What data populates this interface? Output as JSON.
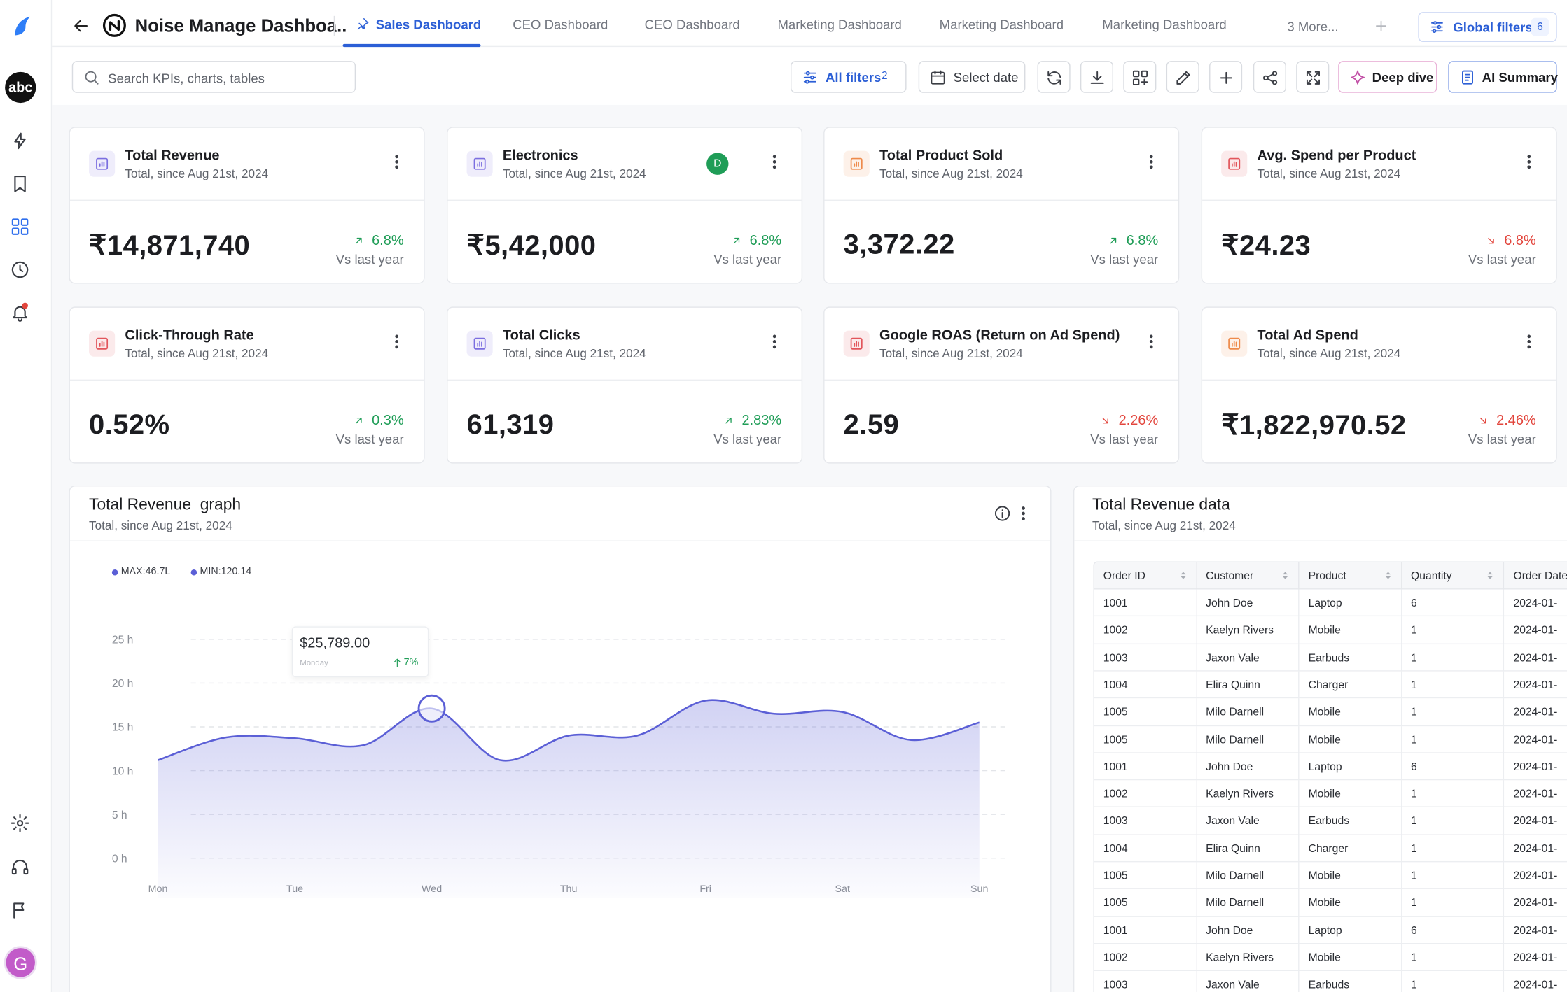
{
  "sidebar": {
    "workspace": "abc",
    "avatar": "G"
  },
  "header": {
    "title": "Noise Manage Dashboa..",
    "tabs": [
      "Sales Dashboard",
      "CEO Dashboard",
      "CEO Dashboard",
      "Marketing Dashboard",
      "Marketing Dashboard",
      "Marketing Dashboard"
    ],
    "more": "3 More...",
    "global_filters": "Global filters",
    "global_filters_count": "6"
  },
  "toolbar": {
    "search_placeholder": "Search KPIs, charts, tables",
    "all_filters": "All filters",
    "all_filters_count": "2",
    "select_date": "Select date",
    "deep_dive": "Deep dive",
    "ai_summary": "AI Summary"
  },
  "kpis": [
    {
      "title": "Total Revenue",
      "subtitle": "Total, since Aug 21st, 2024",
      "value": "₹14,871,740",
      "change": "6.8%",
      "compare": "Vs last year",
      "trend": "up",
      "icon_color": "#7b6ee0"
    },
    {
      "title": "Electronics",
      "subtitle": "Total, since Aug 21st, 2024",
      "value": "₹5,42,000",
      "change": "6.8%",
      "compare": "Vs last year",
      "trend": "up",
      "icon_color": "#7b6ee0",
      "badge": "D"
    },
    {
      "title": "Total Product Sold",
      "subtitle": "Total, since Aug 21st, 2024",
      "value": "3,372.22",
      "change": "6.8%",
      "compare": "Vs last year",
      "trend": "up",
      "icon_color": "#ee8a4a"
    },
    {
      "title": "Avg. Spend per Product",
      "subtitle": "Total, since Aug 21st, 2024",
      "value": "₹24.23",
      "change": "6.8%",
      "compare": "Vs last year",
      "trend": "down",
      "icon_color": "#e2555b"
    },
    {
      "title": "Click-Through Rate",
      "subtitle": "Total, since Aug 21st, 2024",
      "value": "0.52%",
      "change": "0.3%",
      "compare": "Vs last year",
      "trend": "up",
      "icon_color": "#e2555b"
    },
    {
      "title": "Total Clicks",
      "subtitle": "Total, since Aug 21st, 2024",
      "value": "61,319",
      "change": "2.83%",
      "compare": "Vs last year",
      "trend": "up",
      "icon_color": "#7b6ee0"
    },
    {
      "title": "Google ROAS (Return on Ad Spend)",
      "subtitle": "Total, since Aug 21st, 2024",
      "value": "2.59",
      "change": "2.26%",
      "compare": "Vs last year",
      "trend": "down",
      "icon_color": "#e2555b"
    },
    {
      "title": "Total Ad Spend",
      "subtitle": "Total, since Aug 21st, 2024",
      "value": "₹1,822,970.52",
      "change": "2.46%",
      "compare": "Vs last year",
      "trend": "down",
      "icon_color": "#ee8a4a"
    }
  ],
  "revenue_graph": {
    "title": "Total Revenue  graph",
    "subtitle": "Total, since Aug 21st, 2024",
    "legend": [
      "MAX:46.7L",
      "MIN:120.14"
    ],
    "tooltip": {
      "value": "$25,789.00",
      "day": "Monday",
      "change": "7%"
    }
  },
  "chart_data": {
    "type": "line",
    "categories": [
      "Mon",
      null,
      "Tue",
      null,
      "Wed",
      null,
      "Thu",
      null,
      "Fri",
      null,
      "Sat",
      null,
      "Sun"
    ],
    "series": [
      {
        "color": "#5b5fd6",
        "values": [
          11.2,
          13.8,
          13.7,
          12.9,
          17.1,
          11.2,
          14.0,
          14.0,
          18.0,
          16.5,
          16.7,
          13.5,
          15.5
        ]
      }
    ],
    "ylim": [
      0,
      25
    ],
    "yticks": [
      {
        "value": 0,
        "label": "0 h"
      },
      {
        "value": 5,
        "label": "5 h"
      },
      {
        "value": 10,
        "label": "10 h"
      },
      {
        "value": 15,
        "label": "15 h"
      },
      {
        "value": 20,
        "label": "20 h"
      },
      {
        "value": 25,
        "label": "25 h"
      }
    ],
    "grid": true
  },
  "revenue_table": {
    "title": "Total Revenue data",
    "subtitle": "Total, since Aug 21st, 2024",
    "columns": [
      "Order ID",
      "Customer",
      "Product",
      "Quantity",
      "Order Date"
    ],
    "rows": [
      [
        "1001",
        "John Doe",
        "Laptop",
        "6",
        "2024-01-"
      ],
      [
        "1002",
        "Kaelyn Rivers",
        "Mobile",
        "1",
        "2024-01-"
      ],
      [
        "1003",
        "Jaxon Vale",
        "Earbuds",
        "1",
        "2024-01-"
      ],
      [
        "1004",
        "Elira Quinn",
        "Charger",
        "1",
        "2024-01-"
      ],
      [
        "1005",
        "Milo Darnell",
        "Mobile",
        "1",
        "2024-01-"
      ],
      [
        "1005",
        "Milo Darnell",
        "Mobile",
        "1",
        "2024-01-"
      ],
      [
        "1001",
        "John Doe",
        "Laptop",
        "6",
        "2024-01-"
      ],
      [
        "1002",
        "Kaelyn Rivers",
        "Mobile",
        "1",
        "2024-01-"
      ],
      [
        "1003",
        "Jaxon Vale",
        "Earbuds",
        "1",
        "2024-01-"
      ],
      [
        "1004",
        "Elira Quinn",
        "Charger",
        "1",
        "2024-01-"
      ],
      [
        "1005",
        "Milo Darnell",
        "Mobile",
        "1",
        "2024-01-"
      ],
      [
        "1005",
        "Milo Darnell",
        "Mobile",
        "1",
        "2024-01-"
      ],
      [
        "1001",
        "John Doe",
        "Laptop",
        "6",
        "2024-01-"
      ],
      [
        "1002",
        "Kaelyn Rivers",
        "Mobile",
        "1",
        "2024-01-"
      ],
      [
        "1003",
        "Jaxon Vale",
        "Earbuds",
        "1",
        "2024-01-"
      ]
    ]
  }
}
